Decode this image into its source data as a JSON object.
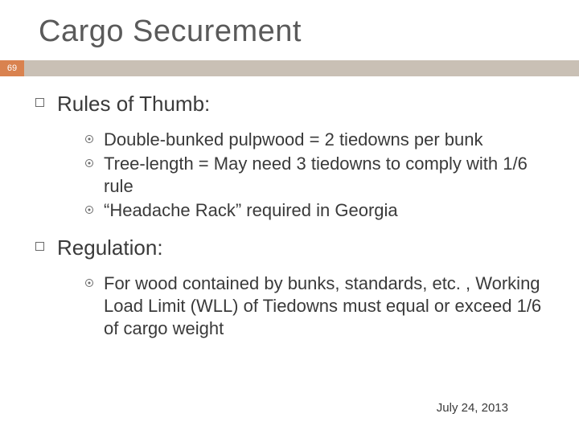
{
  "slide": {
    "title": "Cargo Securement",
    "page_number": "69",
    "colors": {
      "accent_orange": "#d9824f",
      "bar_grey": "#c9c0b5",
      "title_color": "#5a5a5a",
      "body_color": "#3a3a3a",
      "background": "#ffffff"
    },
    "fonts": {
      "title_size_pt": 38,
      "l1_size_pt": 26,
      "l2_size_pt": 22,
      "footer_size_pt": 15
    },
    "sections": [
      {
        "heading": "Rules of Thumb:",
        "items": [
          "Double-bunked pulpwood = 2 tiedowns per bunk",
          "Tree-length = May need 3 tiedowns to comply with 1/6 rule",
          "“Headache Rack” required in Georgia"
        ]
      },
      {
        "heading": "Regulation:",
        "items": [
          "For wood contained by bunks, standards, etc. , Working Load Limit (WLL) of Tiedowns must equal or exceed 1/6 of cargo weight"
        ]
      }
    ],
    "footer_date": "July 24, 2013"
  }
}
